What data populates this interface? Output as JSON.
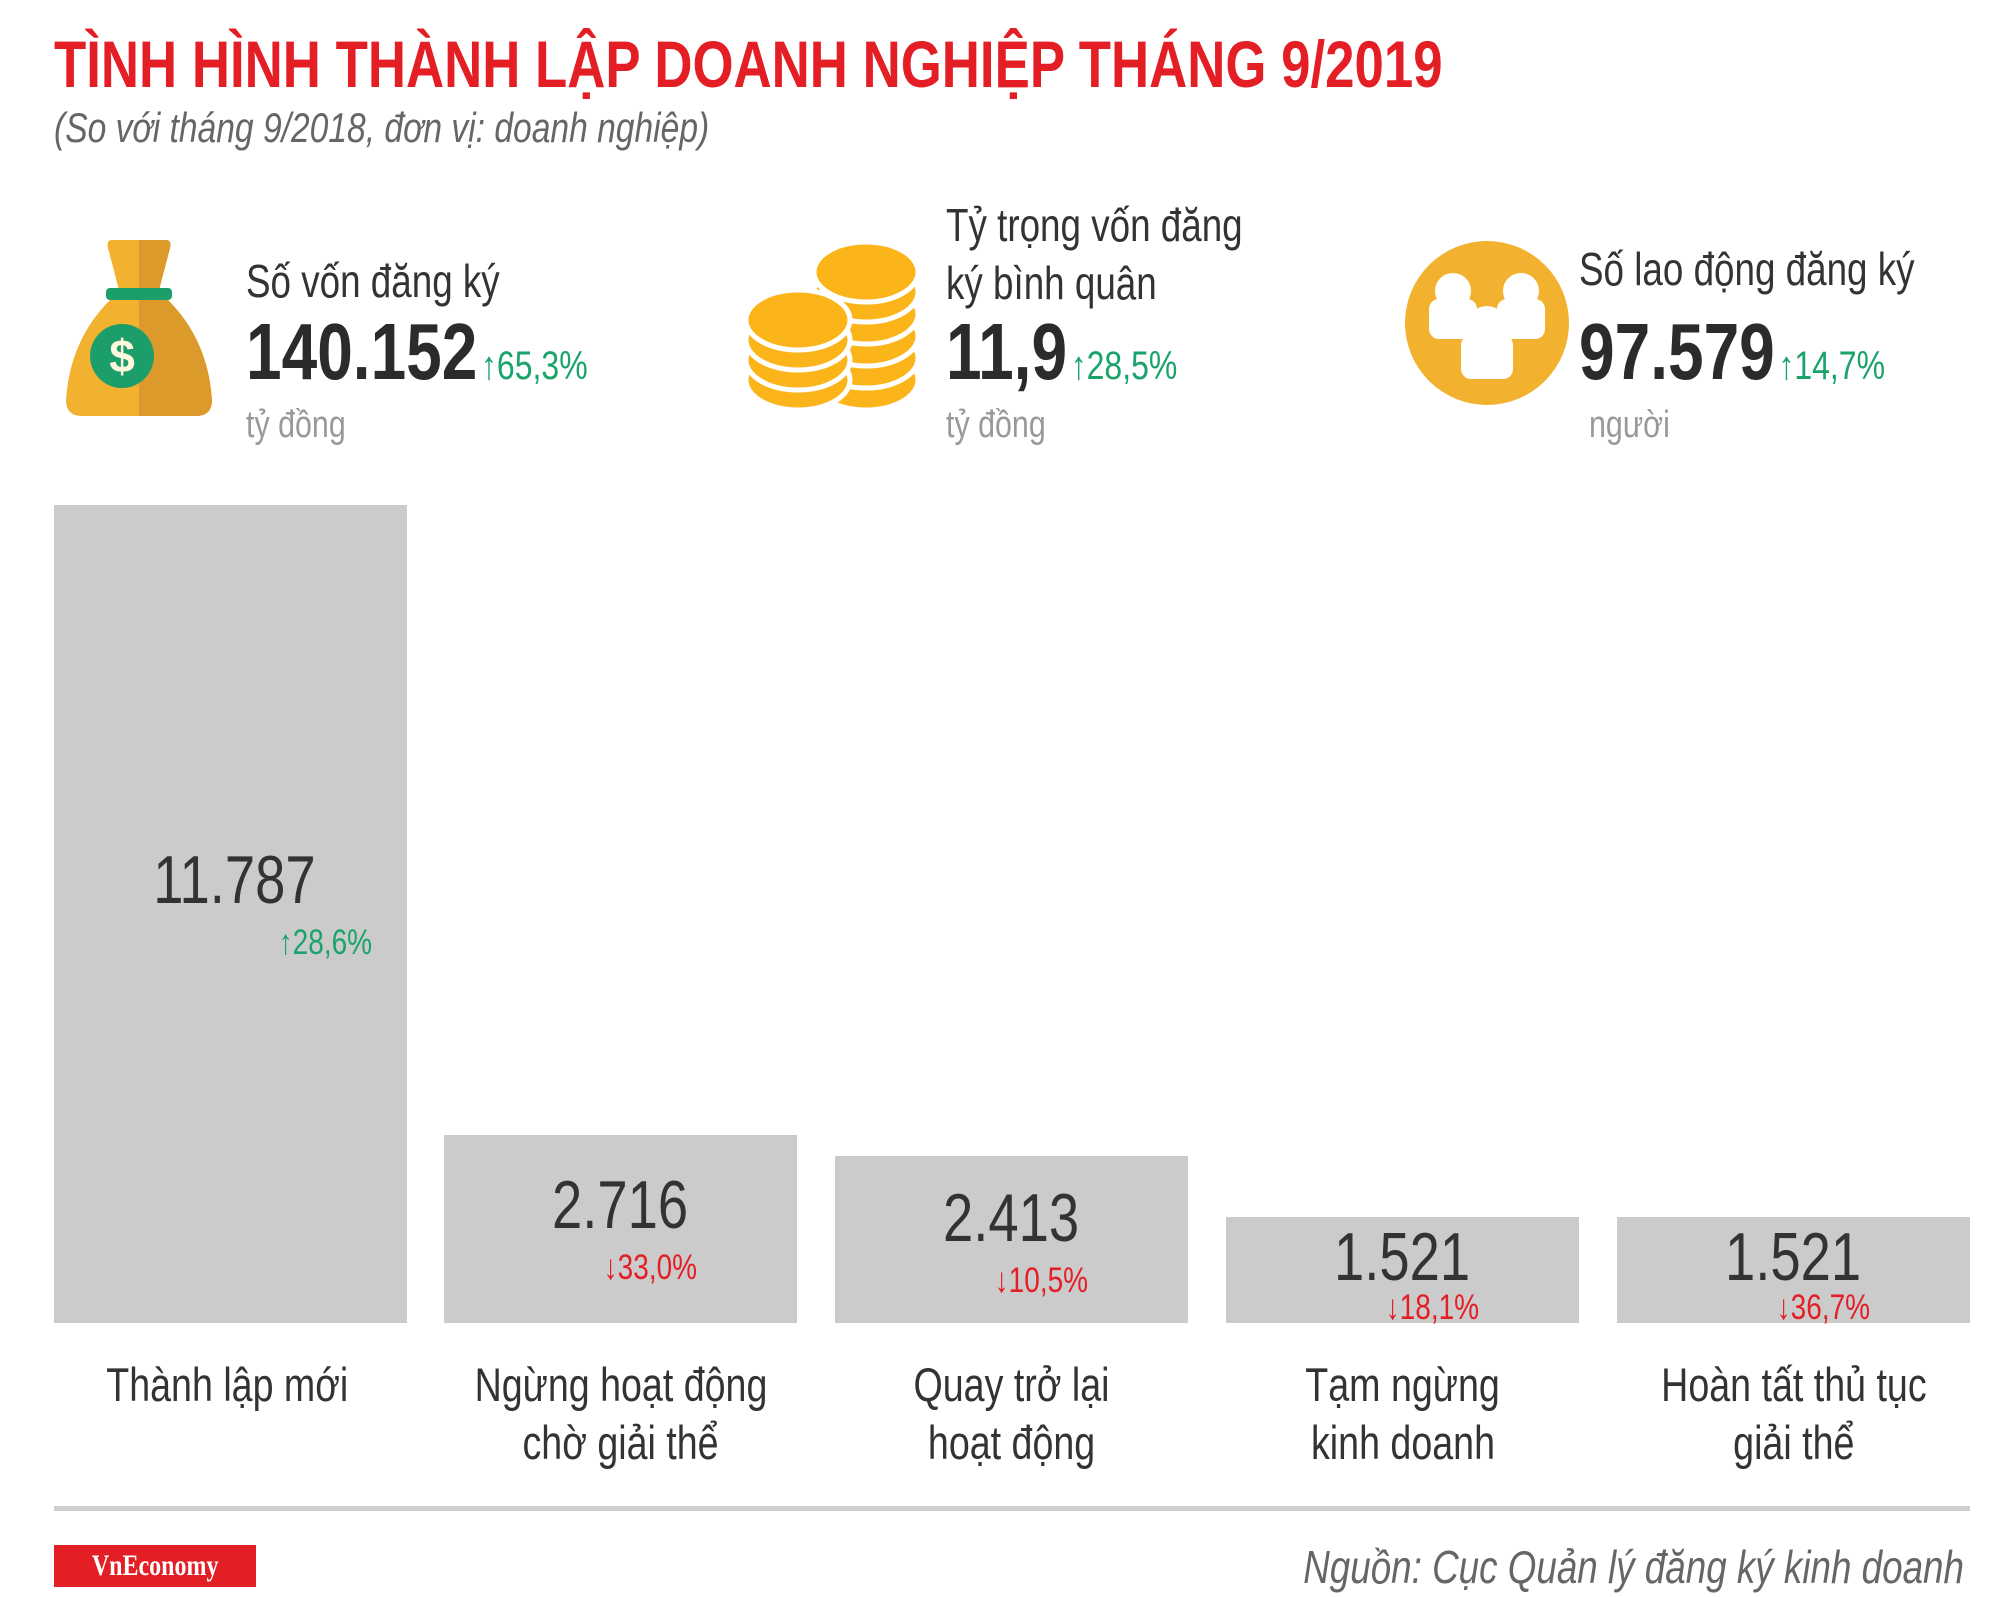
{
  "header": {
    "title": "TÌNH HÌNH THÀNH LẬP DOANH NGHIỆP THÁNG 9/2019",
    "subtitle": "(So với tháng 9/2018, đơn vị: doanh nghiệp)"
  },
  "kpis": [
    {
      "label_lines": [
        "Số vốn đăng ký"
      ],
      "value": "140.152",
      "change": "↑65,3%",
      "unit": "tỷ đồng",
      "icon": "money-bag-icon"
    },
    {
      "label_lines": [
        "Tỷ trọng vốn đăng",
        "ký bình quân"
      ],
      "value": "11,9",
      "change": "↑28,5%",
      "unit": "tỷ đồng",
      "icon": "coins-icon"
    },
    {
      "label_lines": [
        "Số lao động đăng ký"
      ],
      "value": "97.579",
      "change": "↑14,7%",
      "unit": "người",
      "icon": "people-icon"
    }
  ],
  "colors": {
    "title": "#e31e25",
    "up": "#1aa36b",
    "down": "#e31e25",
    "bar": "#cccbcc",
    "icon": "#f2b12e"
  },
  "chart_data": {
    "type": "bar",
    "categories": [
      [
        "Thành lập mới"
      ],
      [
        "Ngừng hoạt động",
        "chờ giải thể"
      ],
      [
        "Quay trở lại",
        "hoạt động"
      ],
      [
        "Tạm ngừng",
        "kinh doanh"
      ],
      [
        "Hoàn tất thủ tục",
        "giải thể"
      ]
    ],
    "values": [
      11787,
      2716,
      2413,
      1521,
      1521
    ],
    "value_labels": [
      "11.787",
      "2.716",
      "2.413",
      "1.521",
      "1.521"
    ],
    "changes": [
      "↑28,6%",
      "↓33,0%",
      "↓10,5%",
      "↓18,1%",
      "↓36,7%"
    ],
    "change_direction": [
      "up",
      "down",
      "down",
      "down",
      "down"
    ],
    "grid": false
  },
  "footer": {
    "logo": "VnEconomy",
    "source": "Nguồn: Cục Quản lý đăng ký kinh doanh"
  }
}
